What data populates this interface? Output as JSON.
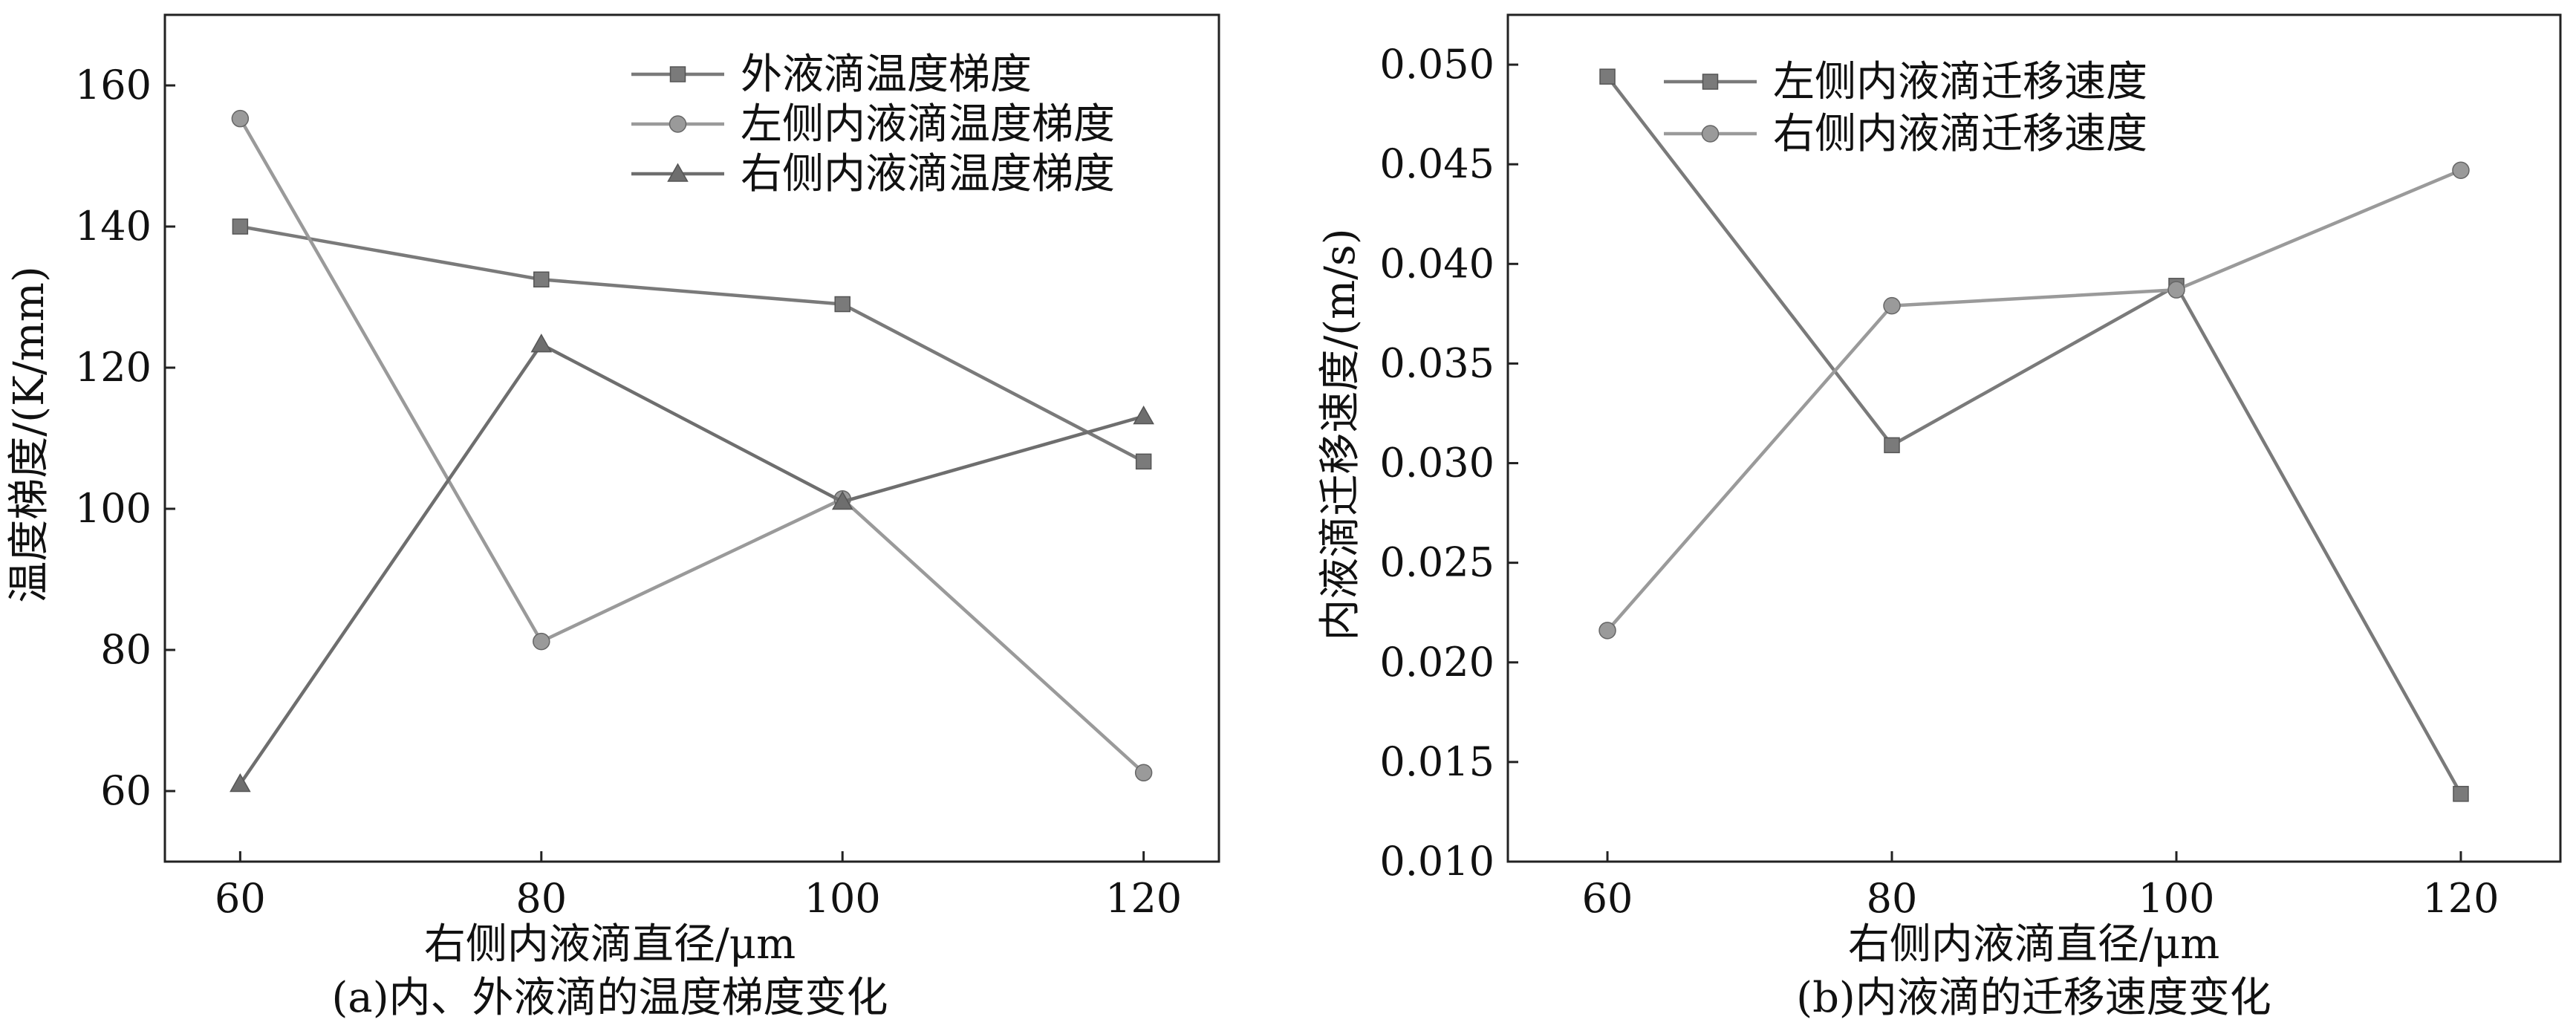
{
  "chart_data": [
    {
      "type": "line",
      "caption": "(a)内、外液滴的温度梯度变化",
      "xlabel": "右侧内液滴直径/μm",
      "ylabel": "温度梯度/(K/mm)",
      "x": [
        60,
        80,
        100,
        120
      ],
      "xlim": [
        55,
        125
      ],
      "ylim": [
        50,
        170
      ],
      "xticks": [
        "60",
        "80",
        "100",
        "120"
      ],
      "yticks": [
        "60",
        "80",
        "100",
        "120",
        "140",
        "160"
      ],
      "grid": false,
      "legend_position": "top-right",
      "series": [
        {
          "name": "外液滴温度梯度",
          "marker": "square",
          "color": "#7a7a7a",
          "values": [
            140.0,
            132.5,
            129.0,
            106.7
          ]
        },
        {
          "name": "左侧内液滴温度梯度",
          "marker": "circle",
          "color": "#9a9a9a",
          "values": [
            155.3,
            81.2,
            101.4,
            62.6
          ]
        },
        {
          "name": "右侧内液滴温度梯度",
          "marker": "triangle",
          "color": "#6e6e6e",
          "values": [
            61.0,
            123.3,
            101.0,
            113.1
          ]
        }
      ]
    },
    {
      "type": "line",
      "caption": "(b)内液滴的迁移速度变化",
      "xlabel": "右侧内液滴直径/μm",
      "ylabel": "内液滴迁移速度/(m/s)",
      "x": [
        60,
        80,
        100,
        120
      ],
      "xlim": [
        53,
        127
      ],
      "ylim": [
        0.01,
        0.0525
      ],
      "xticks": [
        "60",
        "80",
        "100",
        "120"
      ],
      "yticks": [
        "0.010",
        "0.015",
        "0.020",
        "0.025",
        "0.030",
        "0.035",
        "0.040",
        "0.045",
        "0.050"
      ],
      "grid": false,
      "legend_position": "top-left",
      "series": [
        {
          "name": "左侧内液滴迁移速度",
          "marker": "square",
          "color": "#7a7a7a",
          "values": [
            0.0494,
            0.0309,
            0.0389,
            0.0134
          ]
        },
        {
          "name": "右侧内液滴迁移速度",
          "marker": "circle",
          "color": "#9a9a9a",
          "values": [
            0.0216,
            0.0379,
            0.0387,
            0.0447
          ]
        }
      ]
    }
  ]
}
